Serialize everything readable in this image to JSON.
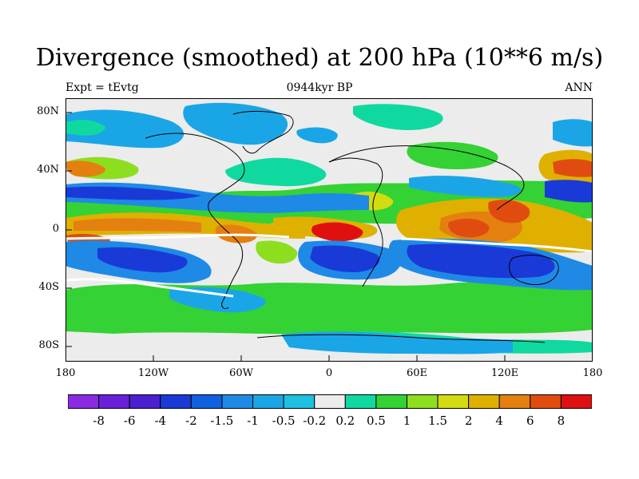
{
  "figure": {
    "title": "Divergence (smoothed) at 200 hPa (10**6 m/s)",
    "left_subtitle": "Expt = tEvtg",
    "center_subtitle": "0944kyr BP",
    "right_subtitle": "ANN"
  },
  "axes": {
    "y_ticks": [
      "80N",
      "40N",
      "0",
      "40S",
      "80S"
    ],
    "x_ticks": [
      "180",
      "120W",
      "60W",
      "0",
      "60E",
      "120E",
      "180"
    ]
  },
  "colorbar": {
    "labels": [
      "-8",
      "-6",
      "-4",
      "-2",
      "-1.5",
      "-1",
      "-0.5",
      "-0.2",
      "0.2",
      "0.5",
      "1",
      "1.5",
      "2",
      "4",
      "6",
      "8"
    ],
    "colors": [
      "#8a2be2",
      "#6a1fd8",
      "#4a20d0",
      "#1a3ad8",
      "#1060e0",
      "#1e8ae6",
      "#1aa6e6",
      "#1ec0e0",
      "#ececec",
      "#10d9a0",
      "#34d234",
      "#8ede20",
      "#d2dc10",
      "#e0b000",
      "#e48010",
      "#e04c10",
      "#e01010"
    ]
  }
}
